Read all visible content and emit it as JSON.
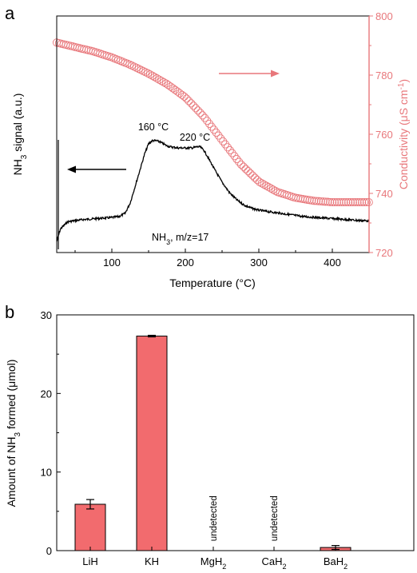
{
  "panel_a": {
    "label": "a",
    "xlabel": "Temperature (°C)",
    "ylabel_left": "NH3 signal (a.u.)",
    "ylabel_right": "Conductivity (μS cm⁻¹)",
    "annotation_160": "160 °C",
    "annotation_220": "220 °C",
    "trace_label": "NH3, m/z=17",
    "right_axis_color": "#e8777b"
  },
  "panel_b": {
    "label": "b",
    "ylabel": "Amount of NH3 formed (μmol)",
    "undetected_label": "undetected",
    "bar_color": "#f26b6e"
  },
  "chart_data": [
    {
      "type": "line",
      "panel": "a",
      "xlim": [
        25,
        450
      ],
      "xticks": [
        100,
        200,
        300,
        400
      ],
      "xlabel": "Temperature (°C)",
      "ylabel": "NH3 signal (a.u.)",
      "y2label": "Conductivity (μS cm⁻¹)",
      "y2lim": [
        720,
        800
      ],
      "y2ticks": [
        720,
        740,
        760,
        780,
        800
      ],
      "annotations": [
        "160 °C",
        "220 °C",
        "NH3, m/z=17"
      ],
      "series": [
        {
          "name": "NH3, m/z=17",
          "axis": "left",
          "style": "line",
          "color": "#000000",
          "x": [
            25,
            30,
            40,
            60,
            80,
            100,
            110,
            118,
            125,
            130,
            135,
            140,
            145,
            150,
            155,
            160,
            165,
            170,
            175,
            180,
            190,
            200,
            210,
            215,
            220,
            225,
            230,
            240,
            250,
            260,
            270,
            280,
            290,
            300,
            320,
            340,
            360,
            380,
            400,
            420,
            440,
            450
          ],
          "y": [
            0.03,
            0.15,
            0.22,
            0.24,
            0.25,
            0.26,
            0.27,
            0.3,
            0.4,
            0.52,
            0.64,
            0.76,
            0.88,
            0.97,
            1.0,
            1.0,
            0.99,
            0.97,
            0.95,
            0.94,
            0.93,
            0.93,
            0.93,
            0.94,
            0.94,
            0.91,
            0.85,
            0.72,
            0.6,
            0.5,
            0.43,
            0.38,
            0.35,
            0.33,
            0.31,
            0.29,
            0.27,
            0.26,
            0.25,
            0.24,
            0.23,
            0.23
          ]
        },
        {
          "name": "Conductivity",
          "axis": "right",
          "style": "open-circle markers",
          "color": "#e8777b",
          "x": [
            25,
            50,
            75,
            100,
            125,
            150,
            175,
            200,
            225,
            250,
            275,
            300,
            325,
            350,
            375,
            400,
            425,
            450
          ],
          "y": [
            791,
            789.5,
            788,
            786,
            783.5,
            780.5,
            777,
            772.5,
            766,
            758,
            750,
            744,
            740.5,
            738.5,
            737.5,
            737,
            737,
            737
          ]
        }
      ]
    },
    {
      "type": "bar",
      "panel": "b",
      "categories": [
        "LiH",
        "KH",
        "MgH2",
        "CaH2",
        "BaH2"
      ],
      "values": [
        5.9,
        27.3,
        0,
        0,
        0.4
      ],
      "errors": [
        0.6,
        0.1,
        0,
        0,
        0.25
      ],
      "notes": [
        "",
        "",
        "undetected",
        "undetected",
        ""
      ],
      "ylabel": "Amount of NH3 formed (μmol)",
      "ylim": [
        0,
        30
      ],
      "yticks": [
        0,
        10,
        20,
        30
      ]
    }
  ]
}
